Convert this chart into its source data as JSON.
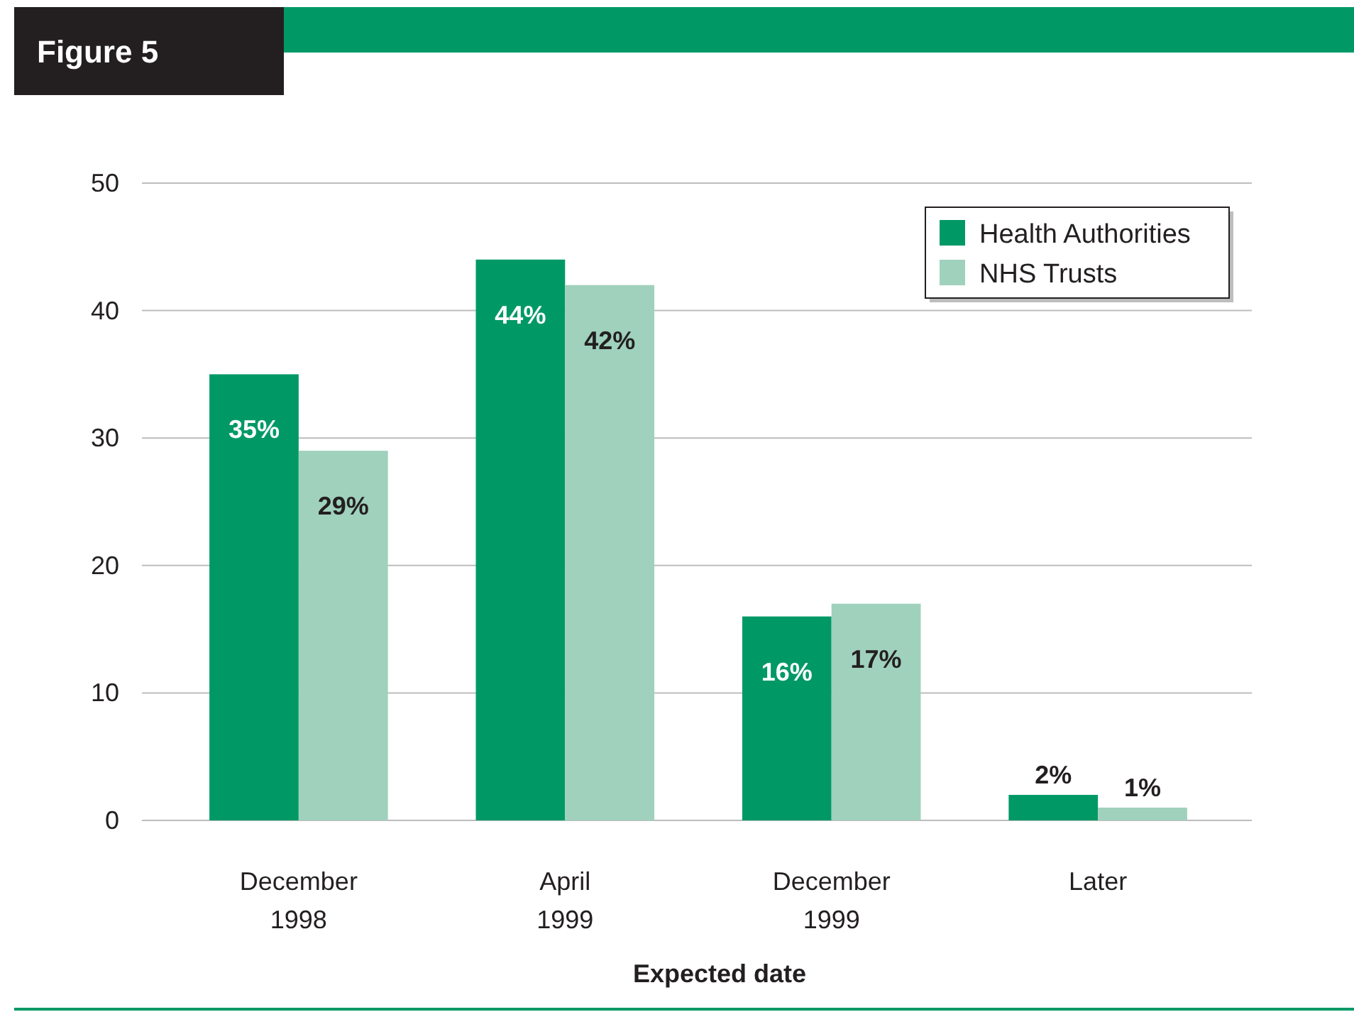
{
  "chart_data": {
    "type": "bar",
    "title": "Figure 5",
    "xlabel": "Expected date",
    "categories": [
      "December 1998",
      "April 1999",
      "December 1999",
      "Later"
    ],
    "series": [
      {
        "name": "Health Authorities",
        "color": "#009966",
        "values": [
          35,
          44,
          16,
          2
        ],
        "value_labels": [
          "35%",
          "44%",
          "16%",
          "2%"
        ]
      },
      {
        "name": "NHS Trusts",
        "color": "#9fd1bd",
        "values": [
          29,
          42,
          17,
          1
        ],
        "value_labels": [
          "29%",
          "42%",
          "17%",
          "1%"
        ]
      }
    ],
    "ylim": [
      0,
      50
    ],
    "yticks": [
      0,
      10,
      20,
      30,
      40,
      50
    ],
    "grid": "y",
    "legend": "top right"
  }
}
